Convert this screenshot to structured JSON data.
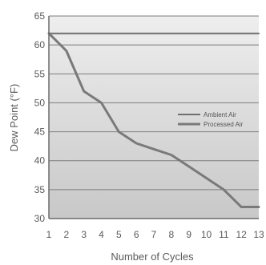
{
  "chart_data": {
    "type": "line",
    "xlabel": "Number of Cycles",
    "ylabel": "Dew Point (°F)",
    "xlim": [
      1,
      13
    ],
    "ylim": [
      30,
      65
    ],
    "x_ticks": [
      "1",
      "2",
      "3",
      "4",
      "5",
      "6",
      "7",
      "8",
      "9",
      "10",
      "11",
      "12",
      "13"
    ],
    "y_ticks": [
      "30",
      "35",
      "40",
      "45",
      "50",
      "55",
      "60",
      "65"
    ],
    "grid": true,
    "legend": "right",
    "series": [
      {
        "name": "Ambient Air",
        "color": "#6f6f6f",
        "x": [
          1,
          13
        ],
        "values": [
          62,
          62
        ]
      },
      {
        "name": "Processed Air",
        "color": "#7a7a7a",
        "x": [
          1,
          2,
          3,
          4,
          5,
          6,
          7,
          8,
          9,
          10,
          11,
          12,
          13
        ],
        "values": [
          62,
          59,
          52,
          50,
          45,
          43,
          42,
          41,
          39,
          37,
          35,
          32,
          32
        ]
      }
    ],
    "colors": {
      "plot_top": "#eeeeee",
      "plot_bottom": "#c8c8c8",
      "grid": "#7d7d7d",
      "axis": "#6b6b6b"
    }
  }
}
